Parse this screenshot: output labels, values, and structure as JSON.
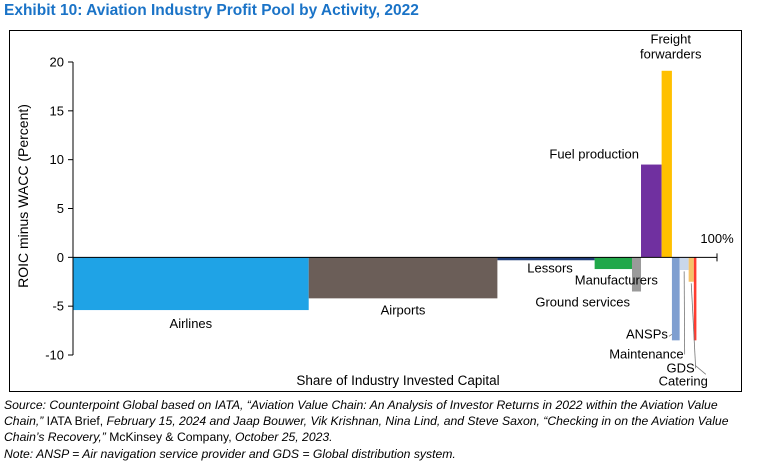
{
  "title": "Exhibit 10: Aviation Industry Profit Pool by Activity, 2022",
  "source": {
    "part1": "Source: Counterpoint Global based on IATA, “Aviation Value Chain: An Analysis of Investor Returns in 2022 within the Aviation Value Chain,”",
    "part2": " IATA Brief, ",
    "part3": "February 15, 2024 and Jaap Bouwer, Vik Krishnan, Nina Lind, and Steve Saxon, “Checking in on the Aviation Value Chain’s Recovery,”",
    "part4": " McKinsey & Company, ",
    "part5": "October 25, 2023."
  },
  "note": "Note: ANSP = Air navigation service provider and GDS = Global distribution system.",
  "chart_data": {
    "type": "bar",
    "subtype": "variable-width (Marimekko-style) bar chart",
    "ylabel": "ROIC minus WACC (Percent)",
    "xlabel": "Share of Industry Invested Capital",
    "ylim": [
      -10,
      20
    ],
    "yticks": [
      "-10",
      "-5",
      "0",
      "5",
      "10",
      "15",
      "20"
    ],
    "end_label": "100%",
    "grid": false,
    "legend": "none",
    "categories": [
      "Airlines",
      "Airports",
      "Lessors",
      "Manufacturers",
      "Ground services",
      "Fuel production",
      "Freight forwarders",
      "ANSPs",
      "Maintenance",
      "GDS",
      "Catering"
    ],
    "series": [
      {
        "values": [
          -5.4,
          -4.2,
          -0.3,
          -1.2,
          -3.5,
          9.5,
          19.1,
          -8.5,
          -1.3,
          -2.5,
          -8.5
        ],
        "share_pct": [
          36.6,
          29.3,
          15.1,
          5.8,
          1.4,
          3.2,
          1.6,
          1.2,
          1.4,
          0.8,
          0.4
        ],
        "colors": [
          "#1fa3e6",
          "#6b5e58",
          "#1f3c78",
          "#21a84a",
          "#9a9a9a",
          "#7030a0",
          "#ffc000",
          "#7f9fd0",
          "#c9d7ea",
          "#f5c36a",
          "#ff3b30"
        ]
      }
    ],
    "labels": {
      "Airlines": "Airlines",
      "Airports": "Airports",
      "Lessors": "Lessors",
      "Manufacturers": "Manufacturers",
      "Ground services": "Ground services",
      "Fuel production": "Fuel production",
      "Freight forwarders": [
        "Freight",
        "forwarders"
      ],
      "ANSPs": "ANSPs",
      "Maintenance": "Maintenance",
      "GDS": "GDS",
      "Catering": "Catering"
    }
  }
}
